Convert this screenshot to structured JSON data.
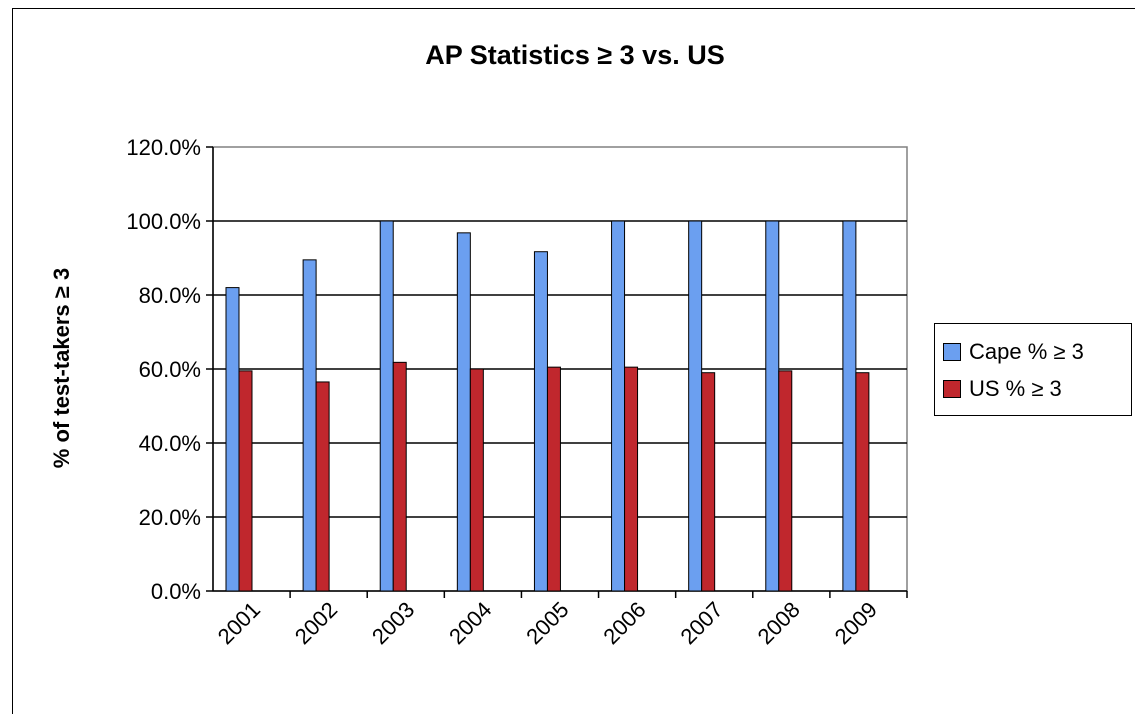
{
  "chart_data": {
    "type": "bar",
    "title": "AP Statistics ≥ 3 vs. US",
    "xlabel": "",
    "ylabel": "% of test-takers ≥ 3",
    "categories": [
      "2001",
      "2002",
      "2003",
      "2004",
      "2005",
      "2006",
      "2007",
      "2008",
      "2009"
    ],
    "series": [
      {
        "name": "Cape % ≥ 3",
        "color": "#6b9ff0",
        "values": [
          82.0,
          89.5,
          100.0,
          96.8,
          91.7,
          100.0,
          100.0,
          100.0,
          100.0
        ]
      },
      {
        "name": "US % ≥ 3",
        "color": "#c0272d",
        "values": [
          59.5,
          56.5,
          61.8,
          60.0,
          60.5,
          60.5,
          59.0,
          59.5,
          59.0
        ]
      }
    ],
    "ylim": [
      0,
      120
    ],
    "yticks": [
      "0.0%",
      "20.0%",
      "40.0%",
      "60.0%",
      "80.0%",
      "100.0%",
      "120.0%"
    ],
    "grid": true,
    "legend_position": "right"
  }
}
